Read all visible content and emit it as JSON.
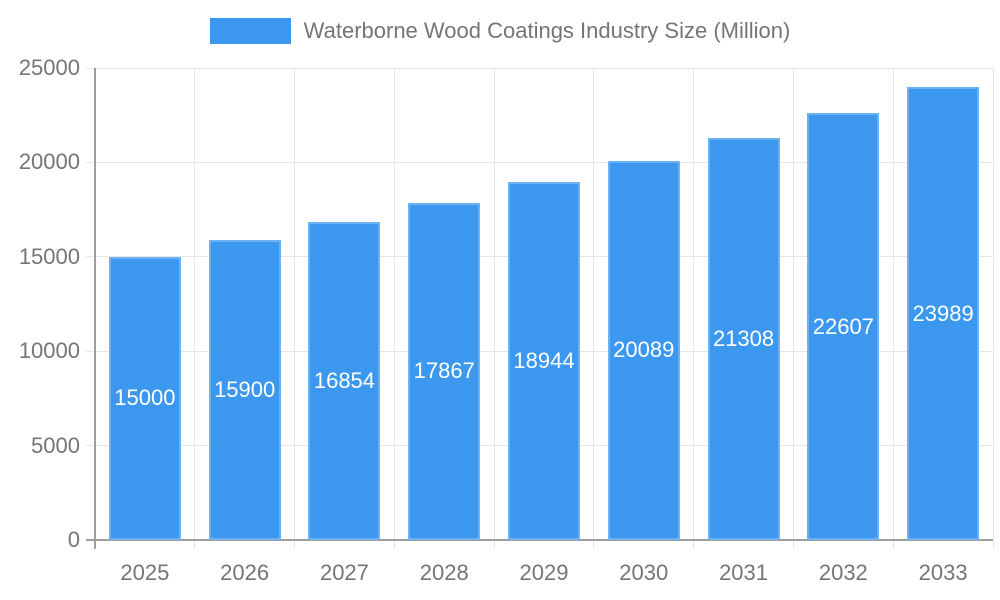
{
  "chart_data": {
    "type": "bar",
    "title": "Waterborne Wood Coatings Industry Size (Million)",
    "legend_position": "top",
    "categories": [
      "2025",
      "2026",
      "2027",
      "2028",
      "2029",
      "2030",
      "2031",
      "2032",
      "2033"
    ],
    "values": [
      15000,
      15900,
      16854,
      17867,
      18944,
      20089,
      21308,
      22607,
      23989
    ],
    "xlabel": "",
    "ylabel": "",
    "ylim": [
      0,
      25000
    ],
    "yticks": [
      0,
      5000,
      10000,
      15000,
      20000,
      25000
    ],
    "grid": true,
    "colors": {
      "bar_fill": "#3b98ee",
      "bar_border": "#6cb2f3",
      "grid_line": "#e6e6e6",
      "axis_line": "#9e9e9e",
      "tick_text": "#757575",
      "value_label_text": "#ffffff",
      "background": "#ffffff"
    }
  }
}
